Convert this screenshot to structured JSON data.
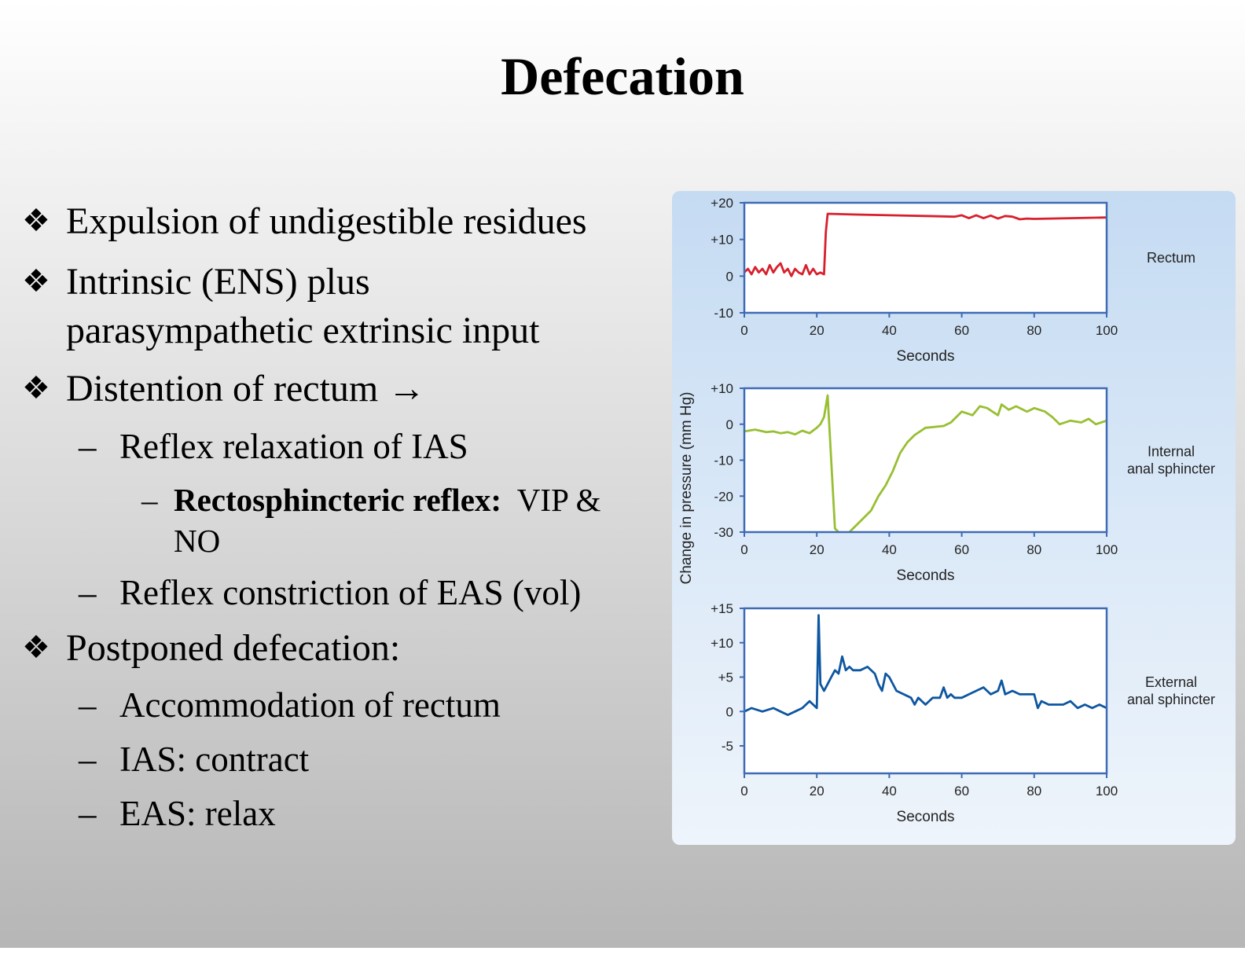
{
  "slide": {
    "title": "Defecation",
    "bullets": [
      {
        "level": 1,
        "text": "Expulsion of undigestible residues"
      },
      {
        "level": 1,
        "text": "Intrinsic (ENS) plus"
      },
      {
        "level": 1,
        "text": "parasympathetic extrinsic input",
        "continuation": true
      },
      {
        "level": 1,
        "text": "Distention of rectum →"
      },
      {
        "level": 2,
        "text": "Reflex relaxation of IAS"
      },
      {
        "level": 3,
        "bold": "Rectosphincteric reflex:",
        "text": "  VIP &"
      },
      {
        "level": 3,
        "text": "NO",
        "continuation": true
      },
      {
        "level": 2,
        "text": "Reflex constriction of EAS (vol)"
      },
      {
        "level": 1,
        "text": "Postponed defecation:"
      },
      {
        "level": 2,
        "text": "Accommodation of rectum"
      },
      {
        "level": 2,
        "text": "IAS: contract"
      },
      {
        "level": 2,
        "text": "EAS: relax"
      }
    ],
    "bullet_marker": "❖",
    "dash_marker": "–"
  },
  "colors": {
    "rectum": "#d8202c",
    "internal": "#98bf32",
    "external": "#0d56a0",
    "frame": "#3f6bb4"
  },
  "chart_data": [
    {
      "type": "line",
      "series_label": "Rectum",
      "xlabel": "Seconds",
      "ylabel": "Change in pressure (mm Hg)",
      "xlim": [
        0,
        100
      ],
      "ylim": [
        -10,
        20
      ],
      "x_ticks": [
        "0",
        "20",
        "40",
        "60",
        "80",
        "100"
      ],
      "y_ticks": [
        "+20",
        "+10",
        "0",
        "-10"
      ],
      "x": [
        0,
        1,
        2,
        3,
        4,
        5,
        6,
        7,
        8,
        9,
        10,
        11,
        12,
        13,
        14,
        15,
        16,
        17,
        18,
        19,
        20,
        21,
        22,
        22.5,
        23,
        30,
        40,
        50,
        58,
        60,
        62,
        64,
        66,
        68,
        70,
        72,
        74,
        76,
        78,
        80,
        90,
        100
      ],
      "y": [
        1,
        2,
        0.5,
        2.5,
        1,
        2,
        0.5,
        3,
        1,
        2.5,
        3.5,
        1,
        2,
        0,
        2,
        1,
        0.5,
        3,
        0.5,
        2,
        0.5,
        1,
        0.5,
        12,
        17,
        16.8,
        16.6,
        16.4,
        16.2,
        16.6,
        15.8,
        16.6,
        15.8,
        16.5,
        15.7,
        16.4,
        16.2,
        15.5,
        15.7,
        15.6,
        15.8,
        16
      ]
    },
    {
      "type": "line",
      "series_label": "Internal anal sphincter",
      "xlabel": "Seconds",
      "xlim": [
        0,
        100
      ],
      "ylim": [
        -30,
        10
      ],
      "x_ticks": [
        "0",
        "20",
        "40",
        "60",
        "80",
        "100"
      ],
      "y_ticks": [
        "+10",
        "0",
        "-10",
        "-20",
        "-30"
      ],
      "x": [
        0,
        3,
        6,
        8,
        10,
        12,
        14,
        16,
        18,
        20,
        21,
        22,
        23,
        25,
        27,
        29,
        31,
        33,
        35,
        37,
        39,
        41,
        43,
        45,
        47,
        50,
        55,
        57,
        60,
        63,
        65,
        67,
        70,
        71,
        73,
        75,
        78,
        80,
        83,
        85,
        87,
        90,
        93,
        95,
        97,
        100
      ],
      "y": [
        -2,
        -1.5,
        -2.2,
        -2,
        -2.5,
        -2.2,
        -2.8,
        -1.8,
        -2.5,
        -1,
        0,
        2,
        8,
        -29,
        -31,
        -30,
        -28,
        -26,
        -24,
        -20,
        -17,
        -13,
        -8,
        -5,
        -3,
        -1,
        -0.5,
        0.5,
        3.5,
        2.5,
        5,
        4.5,
        2.5,
        5.5,
        4,
        5,
        3.5,
        4.5,
        3.5,
        2,
        0,
        1,
        0.5,
        1.5,
        0,
        1
      ]
    },
    {
      "type": "line",
      "series_label": "External anal sphincter",
      "xlabel": "Seconds",
      "xlim": [
        0,
        100
      ],
      "ylim": [
        -9,
        15
      ],
      "x_ticks": [
        "0",
        "20",
        "40",
        "60",
        "80",
        "100"
      ],
      "y_ticks": [
        "+15",
        "+10",
        "+5",
        "0",
        "-5"
      ],
      "x": [
        0,
        2,
        5,
        8,
        10,
        12,
        14,
        16,
        18,
        19,
        20,
        20.5,
        21,
        22,
        23,
        24,
        25,
        26,
        27,
        28,
        29,
        30,
        32,
        34,
        36,
        37,
        38,
        39,
        40,
        42,
        44,
        46,
        47,
        48,
        50,
        52,
        54,
        55,
        56,
        57,
        58,
        60,
        62,
        64,
        66,
        68,
        70,
        71,
        72,
        74,
        76,
        78,
        80,
        81,
        82,
        84,
        86,
        88,
        90,
        92,
        94,
        96,
        98,
        100
      ],
      "y": [
        0,
        0.5,
        0,
        0.5,
        0,
        -0.5,
        0,
        0.5,
        1.5,
        1,
        0.5,
        14,
        4,
        3,
        4,
        5,
        6,
        5.5,
        8,
        6,
        6.5,
        6,
        6,
        6.5,
        5.5,
        4,
        3,
        5.5,
        5,
        3,
        2.5,
        2,
        1,
        2,
        1,
        2,
        2,
        3.5,
        2,
        2.5,
        2,
        2,
        2.5,
        3,
        3.5,
        2.5,
        3,
        4.5,
        2.5,
        3,
        2.5,
        2.5,
        2.5,
        0.5,
        1.5,
        1,
        1,
        1,
        1.5,
        0.5,
        1,
        0.5,
        1,
        0.5
      ]
    }
  ]
}
